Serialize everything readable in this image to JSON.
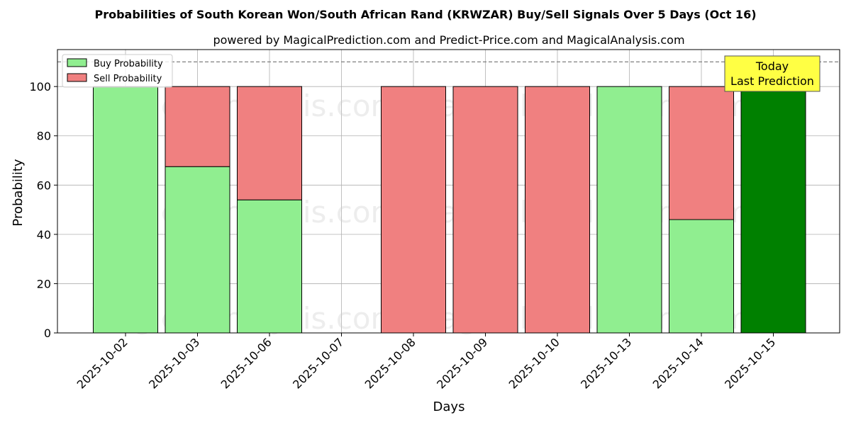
{
  "chart_data": {
    "type": "bar",
    "stacked": true,
    "title": "Probabilities of South Korean Won/South African Rand (KRWZAR) Buy/Sell Signals Over 5 Days (Oct 16)",
    "subtitle": "powered by MagicalPrediction.com and Predict-Price.com and MagicalAnalysis.com",
    "xlabel": "Days",
    "ylabel": "Probability",
    "ylim": [
      0,
      115
    ],
    "yticks": [
      0,
      20,
      40,
      60,
      80,
      100
    ],
    "grid": true,
    "legend_position": "top-left",
    "reference_line": 110,
    "categories": [
      "2025-10-02",
      "2025-10-03",
      "2025-10-06",
      "2025-10-07",
      "2025-10-08",
      "2025-10-09",
      "2025-10-10",
      "2025-10-13",
      "2025-10-14",
      "2025-10-15"
    ],
    "series": [
      {
        "name": "Buy Probability",
        "color": "#90ee90",
        "values": [
          100,
          67.5,
          54,
          0,
          0,
          0,
          0,
          100,
          46,
          100
        ]
      },
      {
        "name": "Sell Probability",
        "color": "#f08080",
        "values": [
          0,
          32.5,
          46,
          0,
          100,
          100,
          100,
          0,
          54,
          0
        ]
      }
    ],
    "highlight": {
      "category": "2025-10-15",
      "color": "#008000"
    },
    "annotation": {
      "line1": "Today",
      "line2": "Last Prediction",
      "color": "#ffff44"
    },
    "watermarks": [
      "MagicalAnalysis.com",
      "MagicalPrediction.com"
    ]
  }
}
